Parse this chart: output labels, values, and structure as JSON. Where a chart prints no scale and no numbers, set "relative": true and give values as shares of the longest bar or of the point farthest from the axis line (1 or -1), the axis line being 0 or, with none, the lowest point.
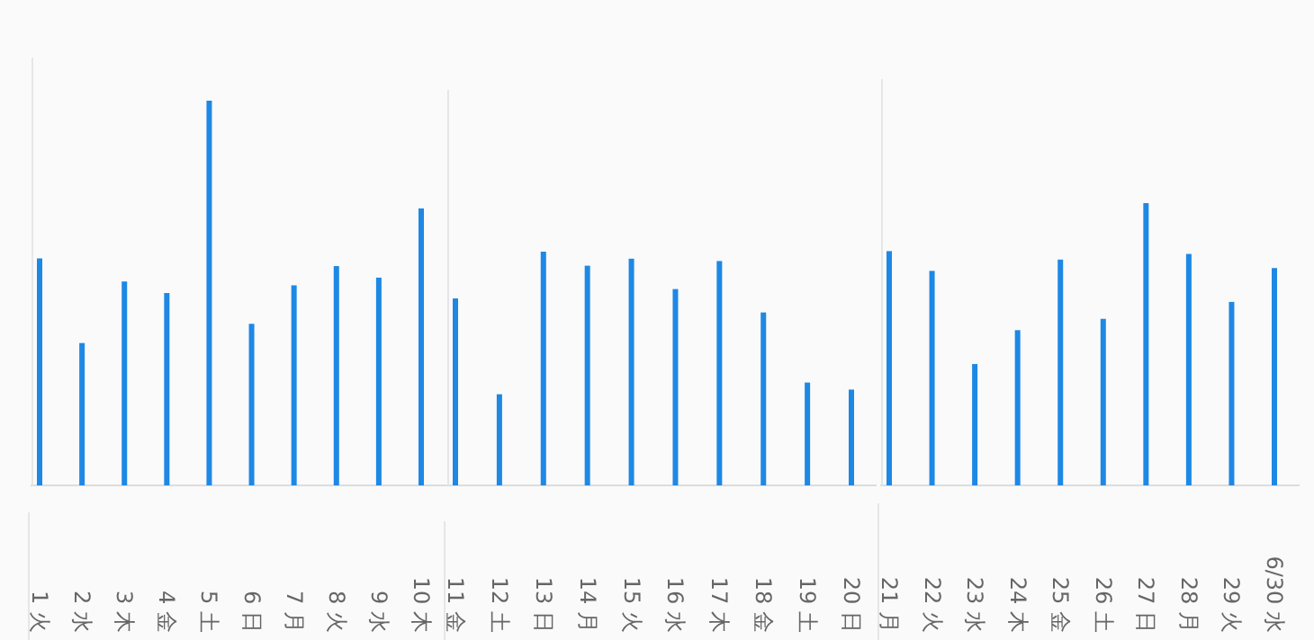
{
  "chart_data": [
    {
      "type": "bar",
      "relative": true,
      "color": "#1e88e5",
      "categories": [
        "1 火",
        "2 水",
        "3 木",
        "4 金",
        "5 土",
        "6 日",
        "7 月",
        "8 火",
        "9 水",
        "10 木"
      ],
      "values": [
        0.59,
        0.37,
        0.53,
        0.5,
        1,
        0.42,
        0.52,
        0.57,
        0.54,
        0.72
      ]
    },
    {
      "type": "bar",
      "relative": true,
      "color": "#1e88e5",
      "categories": [
        "11 金",
        "12 土",
        "13 日",
        "14 月",
        "15 火",
        "16 水",
        "17 木",
        "18 金",
        "19 土",
        "20 日"
      ],
      "values": [
        0.8,
        0.39,
        1,
        0.94,
        0.97,
        0.84,
        0.96,
        0.74,
        0.44,
        0.41
      ]
    },
    {
      "type": "bar",
      "relative": true,
      "color": "#1e88e5",
      "categories": [
        "21 月",
        "22 火",
        "23 水",
        "24 木",
        "25 金",
        "26 土",
        "27 日",
        "28 月",
        "29 火",
        "6/30 水"
      ],
      "values": [
        0.83,
        0.76,
        0.43,
        0.55,
        0.8,
        0.59,
        1,
        0.82,
        0.65,
        0.77
      ]
    }
  ]
}
